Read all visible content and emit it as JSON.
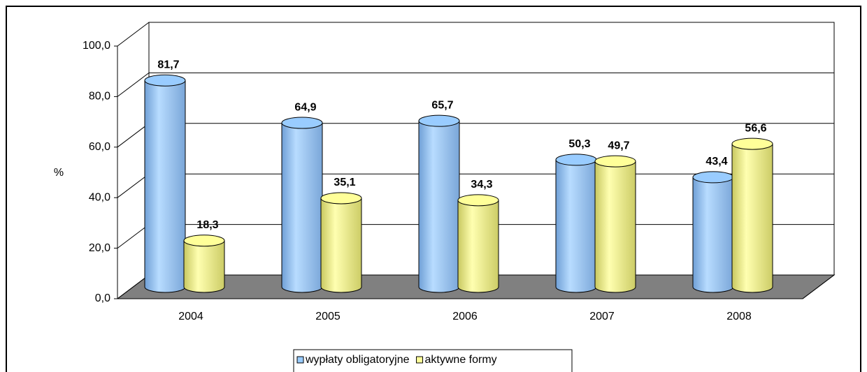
{
  "chart_data": {
    "type": "bar3d",
    "ylabel": "%",
    "categories": [
      "2004",
      "2005",
      "2006",
      "2007",
      "2008"
    ],
    "series": [
      {
        "name": "wypłaty obligatoryjne",
        "color": "#99ccff",
        "values": [
          81.7,
          64.9,
          65.7,
          50.3,
          43.4
        ],
        "value_labels": [
          "81,7",
          "64,9",
          "65,7",
          "50,3",
          "43,4"
        ]
      },
      {
        "name": "aktywne formy",
        "color": "#ffff99",
        "values": [
          18.3,
          35.1,
          34.3,
          49.7,
          56.6
        ],
        "value_labels": [
          "18,3",
          "35,1",
          "34,3",
          "49,7",
          "56,6"
        ]
      }
    ],
    "ylim": [
      0,
      100
    ],
    "yticks": [
      {
        "value": 0,
        "label": "0,0"
      },
      {
        "value": 20,
        "label": "20,0"
      },
      {
        "value": 40,
        "label": "40,0"
      },
      {
        "value": 60,
        "label": "60,0"
      },
      {
        "value": 80,
        "label": "80,0"
      },
      {
        "value": 100,
        "label": "100,0"
      }
    ],
    "grid": true,
    "legend": "bottom"
  }
}
